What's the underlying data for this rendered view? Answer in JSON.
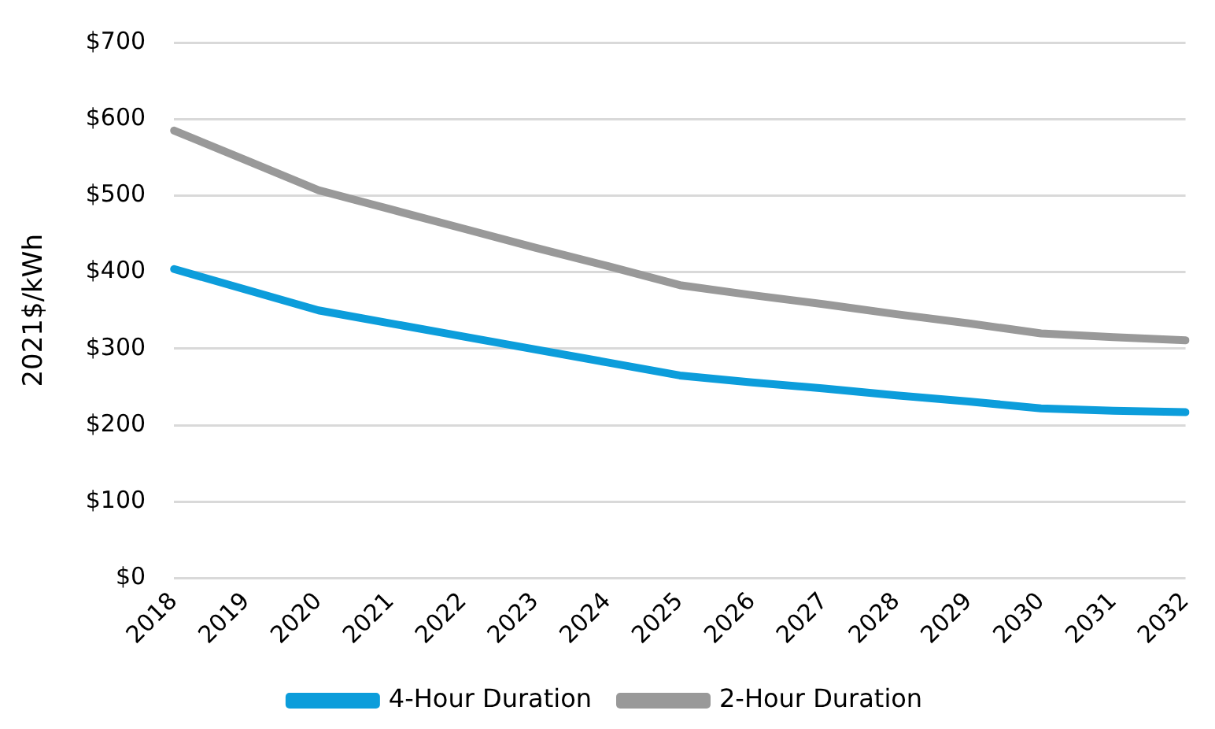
{
  "chart_data": {
    "type": "line",
    "ylabel": "2021$/kWh",
    "categories": [
      "2018",
      "2019",
      "2020",
      "2021",
      "2022",
      "2023",
      "2024",
      "2025",
      "2026",
      "2027",
      "2028",
      "2029",
      "2030",
      "2031",
      "2032"
    ],
    "series": [
      {
        "name": "4-Hour Duration",
        "color": "#0c9ddb",
        "values": [
          404,
          377,
          350,
          333,
          316,
          299,
          282,
          265,
          256,
          248,
          239,
          231,
          222,
          219,
          217
        ]
      },
      {
        "name": "2-Hour Duration",
        "color": "#999999",
        "values": [
          585,
          546,
          507,
          482,
          457,
          432,
          408,
          383,
          370,
          358,
          345,
          333,
          320,
          315,
          311
        ]
      }
    ],
    "ylim": [
      0,
      700
    ],
    "yticks": [
      {
        "value": 0,
        "label": "$0"
      },
      {
        "value": 100,
        "label": "$100"
      },
      {
        "value": 200,
        "label": "$200"
      },
      {
        "value": 300,
        "label": "$300"
      },
      {
        "value": 400,
        "label": "$400"
      },
      {
        "value": 500,
        "label": "$500"
      },
      {
        "value": 600,
        "label": "$600"
      },
      {
        "value": 700,
        "label": "$700"
      }
    ],
    "grid": "y",
    "legend": "bottom",
    "marker": "none",
    "line_style": "solid"
  }
}
